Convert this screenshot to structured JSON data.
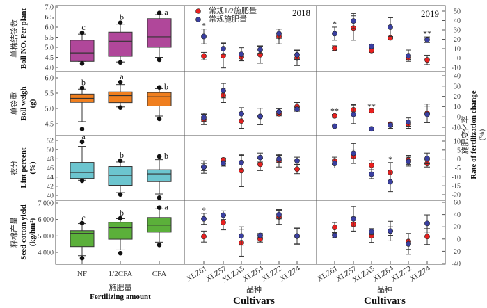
{
  "chart_data": {
    "type": "box+errorbar",
    "colors": {
      "box": [
        "#b0479a",
        "#f07f1f",
        "#6cc5cf",
        "#5bb03a"
      ],
      "series_half": "#e8201f",
      "series_full": "#3a3fa0"
    },
    "left_axis": {
      "categories": [
        "NF",
        "1/2CFA",
        "CFA"
      ],
      "xlabel_cn": "施肥量",
      "xlabel_en": "Fertilizing amount"
    },
    "right_axis": {
      "ylabel_cn": "施肥变化率",
      "ylabel_en": "Rate of fertilization change",
      "ylabel_unit": "(%)"
    },
    "cultivars": [
      "XLZ61",
      "XLZ57",
      "XLZA5",
      "XLZ64",
      "XLZ72",
      "XLZ74"
    ],
    "cultivar_xlabel_cn": "品种",
    "cultivar_xlabel_en": "Cultivars",
    "years": [
      "2018",
      "2019"
    ],
    "legend": [
      "常规1/2施肥量",
      "常规施肥量"
    ],
    "legend_placement": "top-left",
    "rows": [
      {
        "ylabel_cn": "单株结铃数",
        "ylabel_en": "Boll NO. Per plant",
        "unit": "",
        "ylim": [
          4.0,
          7.0
        ],
        "ticks": [
          "4.0",
          "4.5",
          "5.0",
          "5.5",
          "6.0",
          "6.5",
          "7.0"
        ],
        "boxes": [
          {
            "whisk": [
              4.3,
              5.65
            ],
            "q": [
              4.3,
              4.72,
              5.35
            ],
            "out": [
              4.2,
              5.72
            ],
            "letter": "c"
          },
          {
            "whisk": [
              4.27,
              6.15
            ],
            "q": [
              4.55,
              5.3,
              5.75
            ],
            "out": [
              4.25,
              6.22
            ],
            "letter": "b"
          },
          {
            "whisk": [
              4.5,
              6.62
            ],
            "q": [
              5.0,
              5.52,
              6.42
            ],
            "out": [
              4.38,
              6.7
            ],
            "letter": "a"
          }
        ],
        "rlim": [
          -10,
          50
        ],
        "rticks": [
          "-10",
          "0",
          "10",
          "20",
          "30",
          "40",
          "50"
        ],
        "y2018": {
          "half": [
            2,
            2.5,
            1,
            3.5,
            23,
            0
          ],
          "half_err": [
            4,
            13,
            4,
            9,
            8,
            8
          ],
          "full": [
            23,
            10,
            4,
            9,
            26,
            3.5
          ],
          "full_err": [
            8,
            6,
            7,
            4,
            5,
            5
          ],
          "sig": [
            "*",
            "",
            "",
            "",
            "",
            ""
          ]
        },
        "y2019": {
          "half": [
            10.5,
            32,
            8,
            21.5,
            0.5,
            -2
          ],
          "half_err": [
            2.5,
            13,
            2,
            1,
            2,
            5
          ],
          "full": [
            26,
            39.5,
            12.5,
            33,
            2.5,
            19.5
          ],
          "full_err": [
            7,
            8,
            1,
            10,
            6,
            3
          ],
          "sig": [
            "*",
            "",
            "",
            "",
            "",
            "**"
          ]
        }
      },
      {
        "ylabel_cn": "单铃重",
        "ylabel_en": "Boll weigh",
        "unit": "(g)",
        "ylim": [
          4.5,
          6.0
        ],
        "ticks": [
          "4.5",
          "5.0",
          "5.5",
          "6.0"
        ],
        "boxes": [
          {
            "whisk": [
              4.57,
              5.63
            ],
            "q": [
              5.2,
              5.33,
              5.47
            ],
            "out": [
              4.33,
              5.67
            ],
            "letter": "b"
          },
          {
            "whisk": [
              5.05,
              5.78
            ],
            "q": [
              5.19,
              5.42,
              5.54
            ],
            "out": [
              5.03,
              5.86
            ],
            "letter": "a"
          },
          {
            "whisk": [
              4.75,
              5.65
            ],
            "q": [
              5.08,
              5.38,
              5.52
            ],
            "out": [
              4.66,
              5.69
            ],
            "letter": "b"
          }
        ],
        "rlim": [
          -10,
          40
        ],
        "rticks": [
          "-10",
          "0",
          "10",
          "20",
          "30",
          "40"
        ],
        "y2018": {
          "half": [
            -2.5,
            21,
            -4,
            0.5,
            3,
            10
          ],
          "half_err": [
            5,
            7,
            7,
            8,
            2,
            4
          ],
          "full": [
            -0.5,
            25.5,
            3,
            0.5,
            5,
            7.5
          ],
          "full_err": [
            4,
            7,
            6,
            8,
            3,
            2
          ],
          "sig": [
            "",
            "",
            "",
            "",
            "",
            ""
          ]
        },
        "y2019": {
          "half": [
            1,
            7,
            6,
            -7,
            -7,
            3.5
          ],
          "half_err": [
            1.5,
            5,
            1,
            2,
            4,
            9
          ],
          "full": [
            -9,
            2.5,
            -11.5,
            -8,
            -5,
            2.5
          ],
          "full_err": [
            1,
            9,
            1,
            3,
            4,
            8
          ],
          "sig": [
            "**",
            "",
            "**",
            "",
            "",
            ""
          ]
        }
      },
      {
        "ylabel_cn": "衣分",
        "ylabel_en": "Lint percent",
        "unit": "(%)",
        "ylim": [
          40,
          52
        ],
        "ticks": [
          "40",
          "42",
          "44",
          "46",
          "48",
          "50",
          "52"
        ],
        "boxes": [
          {
            "whisk": [
              43.3,
              50.7
            ],
            "q": [
              43.7,
              45.0,
              47.2
            ],
            "out": [
              43.2,
              51.7
            ],
            "letter": "a"
          },
          {
            "whisk": [
              40.6,
              47.3
            ],
            "q": [
              42.2,
              44.4,
              46.3
            ],
            "out": [
              40.2,
              47.6
            ],
            "letter": "b"
          },
          {
            "whisk": [
              40.3,
              47.8
            ],
            "q": [
              43.0,
              44.7,
              45.6
            ],
            "out": [
              39.5,
              48.5
            ],
            "letter": "b"
          }
        ],
        "rlim": [
          -20,
          10
        ],
        "rticks": [
          "-20",
          "-15",
          "-10",
          "-5",
          "0",
          "5",
          "10"
        ],
        "y2018": {
          "half": [
            -4.5,
            -0.5,
            -6.5,
            -3,
            -1,
            -5.7
          ],
          "half_err": [
            2,
            1,
            9,
            3.5,
            3.5,
            2.5
          ],
          "full": [
            -4.5,
            -2.5,
            -2,
            0.8,
            0,
            -1
          ],
          "full_err": [
            3.5,
            1.5,
            4,
            2.5,
            2,
            2
          ],
          "sig": [
            "",
            "",
            "",
            "",
            "",
            ""
          ]
        },
        "y2019": {
          "half": [
            -1,
            1.5,
            -3.5,
            -7.5,
            -0.5,
            -2.5
          ],
          "half_err": [
            2,
            4,
            2.5,
            5.5,
            2.5,
            2
          ],
          "full": [
            -2.5,
            3.2,
            -8.5,
            -12.8,
            -1.5,
            0.3
          ],
          "full_err": [
            2.5,
            5.5,
            2.5,
            5.5,
            2.5,
            3
          ],
          "sig": [
            "",
            "",
            "",
            "*",
            "",
            ""
          ]
        }
      },
      {
        "ylabel_cn": "籽棉产量",
        "ylabel_en": "Seed cotton yield",
        "unit": "(kg/hm²)",
        "ylim": [
          4000,
          7000
        ],
        "ticks": [
          "4 000",
          "5 000",
          "6 000",
          "7 000"
        ],
        "boxes": [
          {
            "whisk": [
              3800,
              5750
            ],
            "q": [
              4350,
              5150,
              5320
            ],
            "out": [
              3650,
              5780
            ],
            "letter": "c"
          },
          {
            "whisk": [
              4150,
              6050
            ],
            "q": [
              4800,
              5500,
              5830
            ],
            "out": [
              3950,
              6070
            ],
            "letter": "b"
          },
          {
            "whisk": [
              4620,
              6650
            ],
            "q": [
              5230,
              5660,
              6120
            ],
            "out": [
              4450,
              6720
            ],
            "letter": "a"
          }
        ],
        "rlim": [
          -40,
          60
        ],
        "rticks": [
          "-40",
          "-20",
          "0",
          "20",
          "40",
          "60"
        ],
        "y2018": {
          "half": [
            4,
            27,
            -6,
            0,
            36,
            4.5
          ],
          "half_err": [
            9,
            12,
            22,
            5,
            12,
            13
          ],
          "full": [
            33,
            39,
            5,
            6,
            40,
            5
          ],
          "full_err": [
            9,
            7,
            15,
            3,
            7,
            13
          ],
          "sig": [
            "*",
            "",
            "",
            "",
            "",
            ""
          ]
        },
        "y2019": {
          "half": [
            19,
            24,
            5.5,
            13,
            -4,
            4
          ],
          "half_err": [
            8,
            12,
            11,
            7,
            13,
            13
          ],
          "full": [
            6,
            33,
            12,
            13,
            -8,
            25.5
          ],
          "full_err": [
            4,
            20,
            5,
            16,
            17,
            14
          ],
          "sig": [
            "",
            "",
            "",
            "",
            "",
            ""
          ]
        }
      }
    ]
  }
}
